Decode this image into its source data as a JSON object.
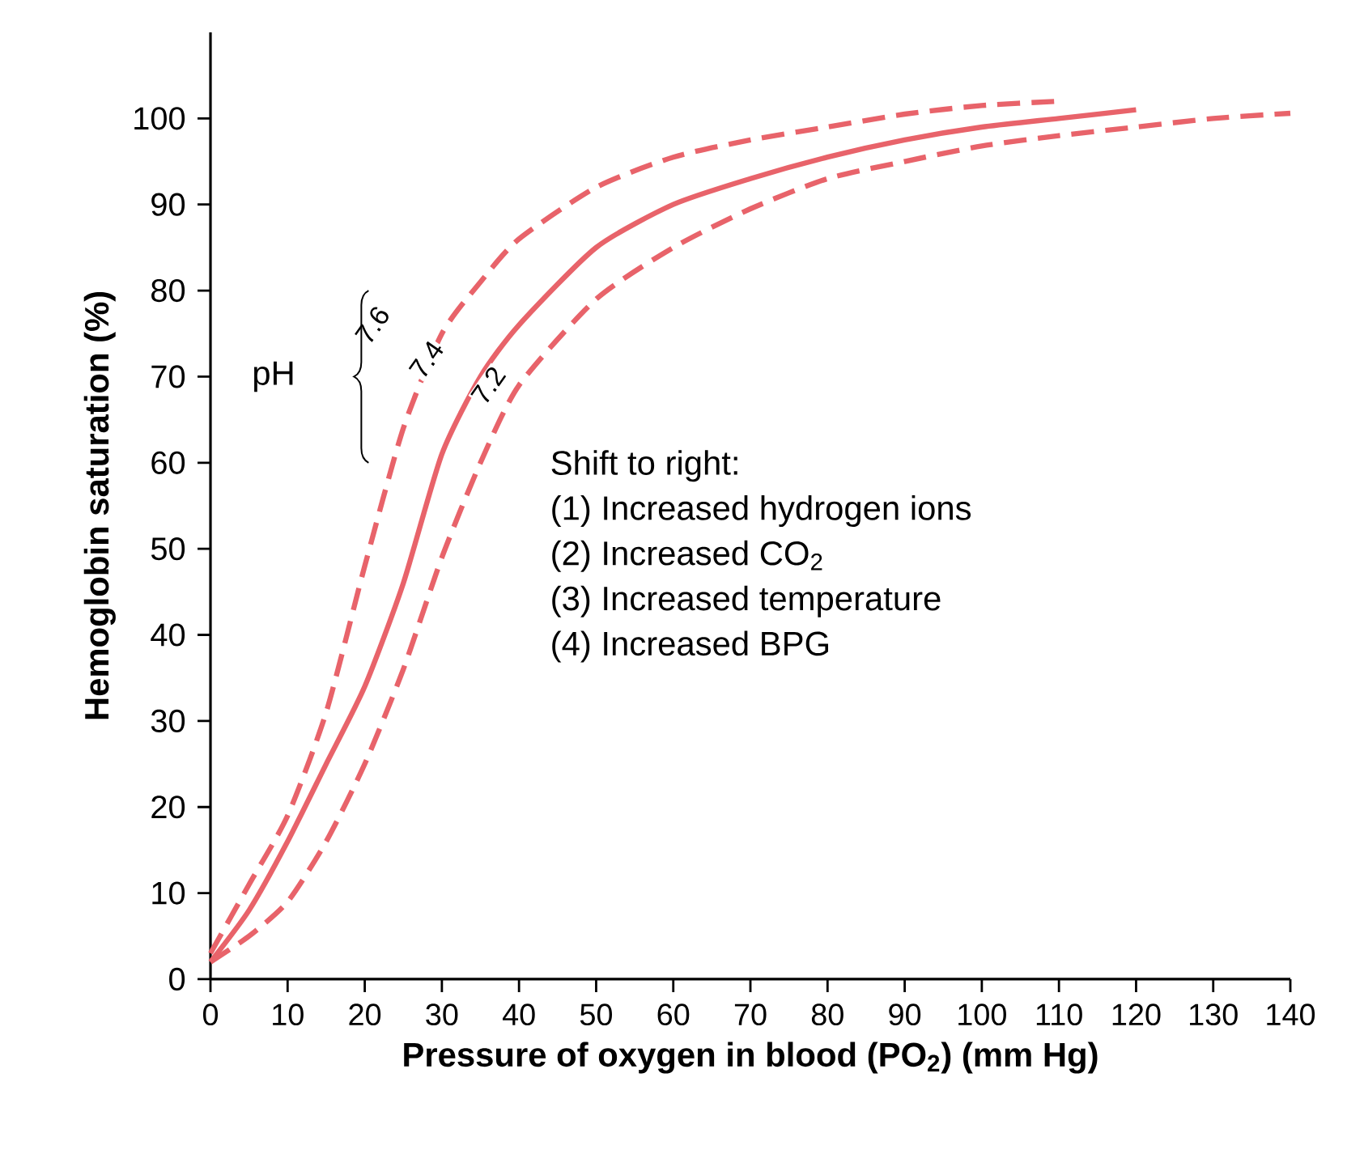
{
  "chart_data": {
    "type": "line",
    "xlabel": "Pressure of oxygen in blood (PO$_{2}$) (mm Hg)",
    "ylabel": "Hemoglobin saturation (%)",
    "xlim": [
      0,
      140
    ],
    "ylim": [
      0,
      110
    ],
    "xticks": [
      0,
      10,
      20,
      30,
      40,
      50,
      60,
      70,
      80,
      90,
      100,
      110,
      120,
      130,
      140
    ],
    "yticks": [
      0,
      10,
      20,
      30,
      40,
      50,
      60,
      70,
      80,
      90,
      100
    ],
    "marker": "none",
    "series": [
      {
        "color": "#e8636a",
        "line_style": "dashed",
        "x": [
          0,
          5,
          10,
          15,
          20,
          25,
          30,
          35,
          40,
          50,
          60,
          70,
          80,
          90,
          100,
          110
        ],
        "values": [
          3,
          11,
          19,
          31,
          48,
          64,
          75,
          81,
          86,
          92,
          95.5,
          97.5,
          99,
          100.5,
          101.5,
          102
        ]
      },
      {
        "color": "#e8636a",
        "line_style": "solid",
        "x": [
          0,
          5,
          10,
          15,
          20,
          25,
          30,
          35,
          40,
          50,
          60,
          70,
          80,
          90,
          100,
          110,
          120
        ],
        "values": [
          2,
          8,
          16,
          25,
          34,
          46,
          61,
          70,
          76,
          85,
          90,
          93,
          95.5,
          97.5,
          99,
          100,
          101
        ]
      },
      {
        "color": "#e8636a",
        "line_style": "dashed",
        "x": [
          0,
          5,
          10,
          15,
          20,
          25,
          30,
          35,
          40,
          50,
          60,
          70,
          80,
          90,
          100,
          110,
          120,
          130,
          140
        ],
        "values": [
          2,
          5,
          9,
          16,
          25,
          36,
          49,
          60,
          69,
          79,
          85,
          89.5,
          93,
          95,
          96.8,
          98,
          99,
          100,
          100.6
        ]
      }
    ],
    "annotations": [
      "7.6",
      "7.4",
      "7.2",
      "pH",
      "Shift to right:",
      "(1) Increased hydrogen ions",
      "(2) Increased CO$_{2}$",
      "(3) Increased temperature",
      "(4) Increased BPG"
    ]
  }
}
